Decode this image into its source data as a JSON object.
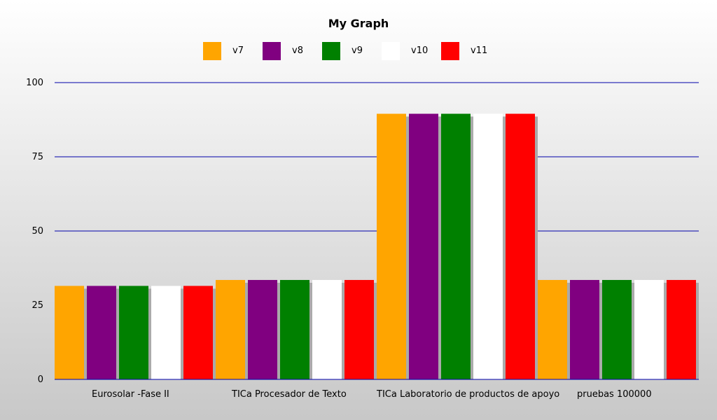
{
  "chart_data": {
    "type": "bar",
    "title": "My Graph",
    "xlabel": "",
    "ylabel": "",
    "ylim": [
      0,
      100
    ],
    "yticks": [
      0,
      25,
      50,
      75,
      100
    ],
    "grid": true,
    "grid_color": "#0000aa",
    "shadow_color": "#aaaaaa",
    "legend_position": "top",
    "categories": [
      "Eurosolar -Fase II",
      "TICa Procesador de Texto",
      "TICa Laboratorio de productos de apoyo",
      "pruebas 100000"
    ],
    "series": [
      {
        "name": "v7",
        "color": "#ffa500",
        "values": [
          31.5,
          33.5,
          89.5,
          33.5
        ]
      },
      {
        "name": "v8",
        "color": "#800080",
        "values": [
          31.5,
          33.5,
          89.5,
          33.5
        ]
      },
      {
        "name": "v9",
        "color": "#008000",
        "values": [
          31.5,
          33.5,
          89.5,
          33.5
        ]
      },
      {
        "name": "v10",
        "color": "#ffffff",
        "values": [
          31.5,
          33.5,
          89.5,
          33.5
        ]
      },
      {
        "name": "v11",
        "color": "#ff0000",
        "values": [
          31.5,
          33.5,
          89.5,
          33.5
        ]
      }
    ]
  }
}
